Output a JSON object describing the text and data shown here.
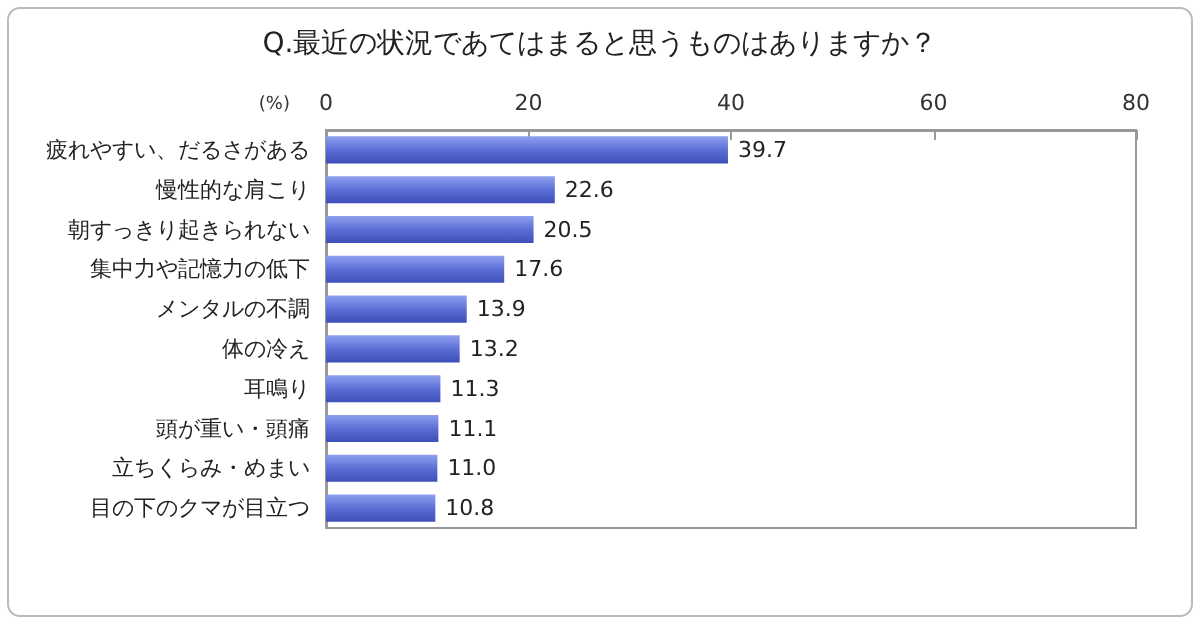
{
  "chart_data": {
    "type": "bar",
    "orientation": "horizontal",
    "title": "Q.最近の状況であてはまると思うものはありますか？",
    "xlabel": "(%)",
    "categories": [
      "疲れやすい、だるさがある",
      "慢性的な肩こり",
      "朝すっきり起きられない",
      "集中力や記憶力の低下",
      "メンタルの不調",
      "体の冷え",
      "耳鳴り",
      "頭が重い・頭痛",
      "立ちくらみ・めまい",
      "目の下のクマが目立つ"
    ],
    "values": [
      39.7,
      22.6,
      20.5,
      17.6,
      13.9,
      13.2,
      11.3,
      11.1,
      11.0,
      10.8
    ],
    "value_labels": [
      "39.7",
      "22.6",
      "20.5",
      "17.6",
      "13.9",
      "13.2",
      "11.3",
      "11.1",
      "11.0",
      "10.8"
    ],
    "color": "#5b6fd6",
    "xlim": [
      0,
      80
    ],
    "xticks": [
      0,
      20,
      40,
      60,
      80
    ],
    "grid": false
  }
}
